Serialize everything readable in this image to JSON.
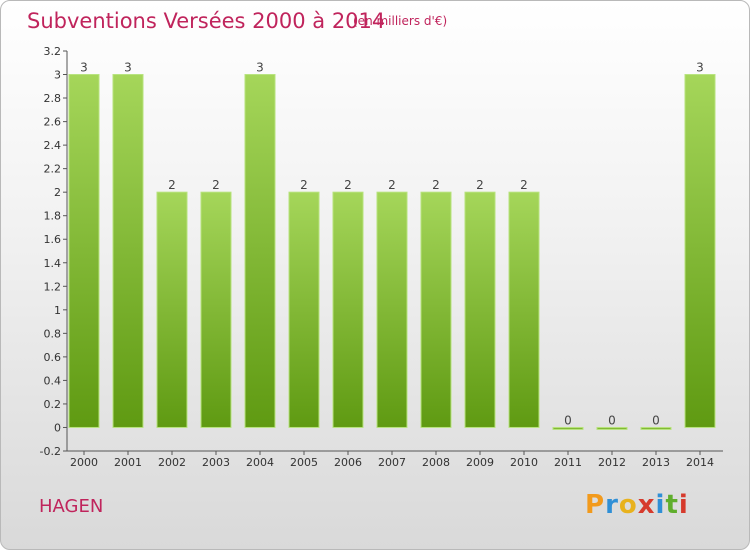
{
  "header": {
    "title": "Subventions Versées 2000 à 2014",
    "unit": "(en milliers d'€)"
  },
  "footer": {
    "commune": "HAGEN",
    "logo": [
      "P",
      "r",
      "o",
      "x",
      "i",
      "t",
      "i"
    ]
  },
  "colors": {
    "title": "#c0245c",
    "bar_light": "#a5d65a",
    "bar_dark": "#5f9a12",
    "logo": [
      "#f29a1c",
      "#2f8fd6",
      "#e8b21d",
      "#d63a2c",
      "#2f8fd6",
      "#5fae2c",
      "#d63a2c"
    ]
  },
  "chart_data": {
    "type": "bar",
    "categories": [
      "2000",
      "2001",
      "2002",
      "2003",
      "2004",
      "2005",
      "2006",
      "2007",
      "2008",
      "2009",
      "2010",
      "2011",
      "2012",
      "2013",
      "2014"
    ],
    "values": [
      3,
      3,
      2,
      2,
      3,
      2,
      2,
      2,
      2,
      2,
      2,
      0,
      0,
      0,
      3
    ],
    "value_labels": [
      "3",
      "3",
      "2",
      "2",
      "3",
      "2",
      "2",
      "2",
      "2",
      "2",
      "2",
      "0",
      "0",
      "0",
      "3"
    ],
    "ylim": [
      -0.2,
      3.2
    ],
    "yticks": [
      "-0.2",
      "0",
      "0.2",
      "0.4",
      "0.6",
      "0.8",
      "1",
      "1.2",
      "1.4",
      "1.6",
      "1.8",
      "2",
      "2.2",
      "2.4",
      "2.6",
      "2.8",
      "3",
      "3.2"
    ],
    "ytick_values": [
      -0.2,
      0,
      0.2,
      0.4,
      0.6,
      0.8,
      1,
      1.2,
      1.4,
      1.6,
      1.8,
      2,
      2.2,
      2.4,
      2.6,
      2.8,
      3,
      3.2
    ],
    "grid": false
  }
}
